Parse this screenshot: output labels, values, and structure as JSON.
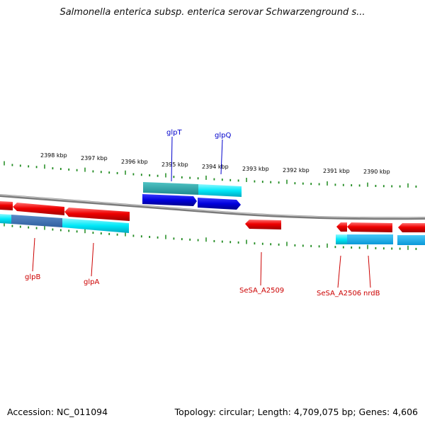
{
  "title": "Salmonella enterica subsp. enterica serovar Schwarzenground s...",
  "footer": {
    "accession": "Accession: NC_011094",
    "summary": "Topology: circular; Length: 4,709,075 bp; Genes: 4,606"
  },
  "kbp_labels": [
    "2398 kbp",
    "2397 kbp",
    "2396 kbp",
    "2395 kbp",
    "2394 kbp",
    "2393 kbp",
    "2392 kbp",
    "2391 kbp",
    "2390 kbp"
  ],
  "colors": {
    "forward_gene": "#0000dd",
    "reverse_gene": "#ee0000",
    "forward_cds": "#00e5f5",
    "reverse_cds": "#00e5f5",
    "genome_backbone": "#888888",
    "tick": "#1f8a1f"
  },
  "genes": [
    {
      "name": "glpT",
      "strand": "forward",
      "color": "#0000cc"
    },
    {
      "name": "glpQ",
      "strand": "forward",
      "color": "#0000cc"
    },
    {
      "name": "glpB",
      "strand": "reverse",
      "color": "#cc0000"
    },
    {
      "name": "glpA",
      "strand": "reverse",
      "color": "#cc0000"
    },
    {
      "name": "SeSA_A2509",
      "strand": "reverse",
      "color": "#cc0000"
    },
    {
      "name": "SeSA_A2506",
      "strand": "reverse",
      "color": "#cc0000"
    },
    {
      "name": "nrdB",
      "strand": "reverse",
      "color": "#cc0000"
    }
  ]
}
